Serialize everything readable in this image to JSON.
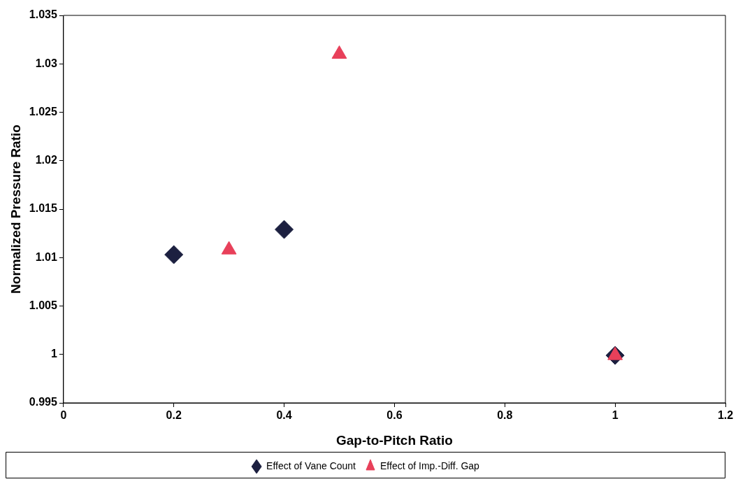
{
  "chart_data": {
    "type": "scatter",
    "xlabel": "Gap-to-Pitch Ratio",
    "ylabel": "Normalized Pressure Ratio",
    "xlim": [
      0,
      1.2
    ],
    "xticks": [
      0,
      0.2,
      0.4,
      0.6,
      0.8,
      1,
      1.2
    ],
    "ylim": [
      0.995,
      1.035
    ],
    "yticks": [
      0.995,
      1,
      1.005,
      1.01,
      1.015,
      1.02,
      1.025,
      1.03,
      1.035
    ],
    "grid": false,
    "legend": "bottom",
    "series": [
      {
        "name": "Effect of Vane Count",
        "color": "#1c2040",
        "marker": "diamond",
        "x": [
          0.2,
          0.4,
          1
        ],
        "values": [
          1.0103,
          1.0129,
          0.9999
        ]
      },
      {
        "name": "Effect of Imp.-Diff. Gap",
        "color": "#e8405a",
        "marker": "triangle",
        "x": [
          0.3,
          0.5,
          1
        ],
        "values": [
          1.0108,
          1.031,
          0.9999
        ]
      }
    ]
  }
}
